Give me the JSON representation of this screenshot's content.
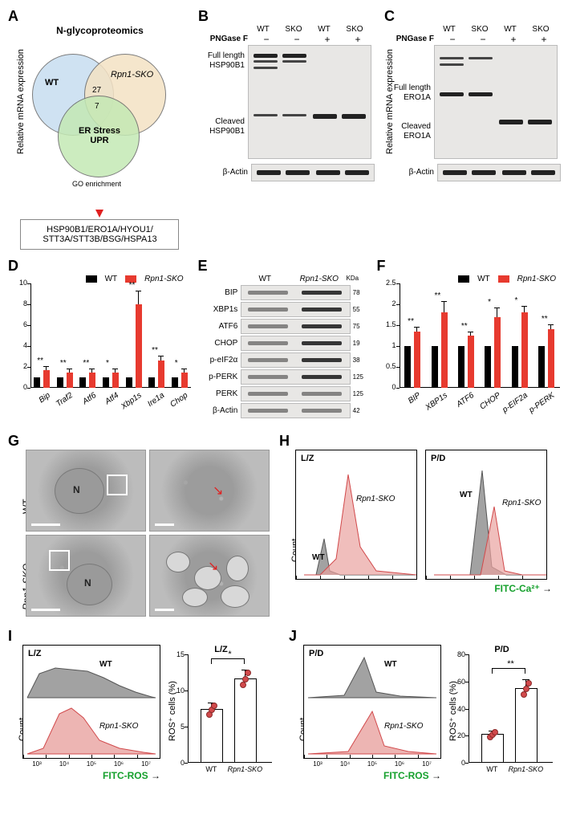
{
  "panelA": {
    "title": "N-glycoproteomics",
    "circle_wt_label": "WT",
    "circle_sko_label": "Rpn1-SKO",
    "circle_er_label_1": "ER Stress",
    "circle_er_label_2": "UPR",
    "center_27": "27",
    "center_7": "7",
    "go_label": "GO enrichment",
    "go_box": "HSP90B1/ERO1A/HYOU1/\nSTT3A/STT3B/BSG/HSPA13",
    "colors": {
      "wt": "#c7def0",
      "sko": "#f4e2c4",
      "er": "#c4e9b4"
    }
  },
  "panelB": {
    "lanes": [
      "WT",
      "SKO",
      "WT",
      "SKO"
    ],
    "pngase_row_label": "PNGase F",
    "pngase": [
      "−",
      "−",
      "+",
      "+"
    ],
    "row1": "Full length\nHSP90B1",
    "row2": "Cleaved\nHSP90B1",
    "loading": "β-Actin"
  },
  "panelC": {
    "lanes": [
      "WT",
      "SKO",
      "WT",
      "SKO"
    ],
    "pngase_row_label": "PNGase F",
    "pngase": [
      "−",
      "−",
      "+",
      "+"
    ],
    "row1": "Full length\nERO1A",
    "row2": "Cleaved\nERO1A",
    "loading": "β-Actin"
  },
  "panelD": {
    "type": "bar",
    "legend": {
      "wt": "WT",
      "sko": "Rpn1-SKO"
    },
    "ylabel": "Relative mRNA expression",
    "ylim": [
      0,
      10
    ],
    "ytick_step": 2,
    "categories": [
      "Bip",
      "Traf2",
      "Atf6",
      "Atf4",
      "Xbp1s",
      "Ire1a",
      "Chop"
    ],
    "wt_values": [
      1.0,
      1.0,
      1.0,
      1.0,
      1.0,
      1.0,
      1.0
    ],
    "sko_values": [
      1.7,
      1.5,
      1.5,
      1.5,
      8.0,
      2.6,
      1.5
    ],
    "sko_err": [
      0.3,
      0.25,
      0.25,
      0.3,
      1.2,
      0.4,
      0.25
    ],
    "signif": [
      "**",
      "**",
      "**",
      "*",
      "**",
      "**",
      "*"
    ],
    "colors": {
      "wt": "#000000",
      "sko": "#e73a2f"
    }
  },
  "panelE": {
    "lanes": [
      "WT",
      "Rpn1-SKO"
    ],
    "mw_unit": "KDa",
    "rows": [
      {
        "name": "BIP",
        "mw": "78"
      },
      {
        "name": "XBP1s",
        "mw": "55"
      },
      {
        "name": "ATF6",
        "mw": "75"
      },
      {
        "name": "CHOP",
        "mw": "19"
      },
      {
        "name": "p-eIF2α",
        "mw": "38"
      },
      {
        "name": "p-PERK",
        "mw": "125"
      },
      {
        "name": "PERK",
        "mw": "125"
      },
      {
        "name": "β-Actin",
        "mw": "42"
      }
    ]
  },
  "panelF": {
    "type": "bar",
    "legend": {
      "wt": "WT",
      "sko": "Rpn1-SKO"
    },
    "ylabel": "Relative mRNA expression",
    "ylim": [
      0,
      2.5
    ],
    "ytick_step": 0.5,
    "categories": [
      "BIP",
      "XBP1s",
      "ATF6",
      "CHOP",
      "p-EIF2a",
      "p-PERK"
    ],
    "wt_values": [
      1.0,
      1.0,
      1.0,
      1.0,
      1.0,
      1.0
    ],
    "sko_values": [
      1.35,
      1.8,
      1.25,
      1.7,
      1.8,
      1.4
    ],
    "sko_err": [
      0.1,
      0.25,
      0.08,
      0.2,
      0.15,
      0.1
    ],
    "signif": [
      "**",
      "**",
      "**",
      "*",
      "*",
      "**"
    ],
    "colors": {
      "wt": "#000000",
      "sko": "#e73a2f"
    }
  },
  "panelG": {
    "row_labels": [
      "WT",
      "Rpn1-SKO"
    ],
    "nucleus_label": "N"
  },
  "panelH": {
    "left_title": "L/Z",
    "right_title": "P/D",
    "wt_label": "WT",
    "sko_label": "Rpn1-SKO",
    "count_label": "Count",
    "x_axis": "FITC-Ca²⁺",
    "colors": {
      "wt": "#a2a2a2",
      "sko": "#e9a3a0",
      "sko_stroke": "#d1494b"
    }
  },
  "panelI": {
    "title": "L/Z",
    "count_label": "Count",
    "wt_label": "WT",
    "sko_label": "Rpn1-SKO",
    "x_axis": "FITC-ROS",
    "bar": {
      "title": "L/Z",
      "ylabel": "ROS⁺ cells (%)",
      "ylim": [
        0,
        15
      ],
      "ytick_step": 5,
      "categories": [
        "WT",
        "Rpn1-SKO"
      ],
      "values": [
        7.2,
        11.5
      ],
      "err": [
        1.0,
        1.3
      ],
      "signif": "*",
      "colors": {
        "bar": "#ffffff",
        "border": "#000000",
        "dot": "#d1494b"
      }
    }
  },
  "panelJ": {
    "title": "P/D",
    "count_label": "Count",
    "wt_label": "WT",
    "sko_label": "Rpn1-SKO",
    "x_axis": "FITC-ROS",
    "bar": {
      "title": "P/D",
      "ylabel": "ROS⁺ cells (%)",
      "ylim": [
        0,
        80
      ],
      "ytick_step": 20,
      "categories": [
        "WT",
        "Rpn1-SKO"
      ],
      "values": [
        20,
        54
      ],
      "err": [
        3,
        7
      ],
      "signif": "**",
      "colors": {
        "bar": "#ffffff",
        "border": "#000000",
        "dot": "#d1494b"
      }
    }
  }
}
